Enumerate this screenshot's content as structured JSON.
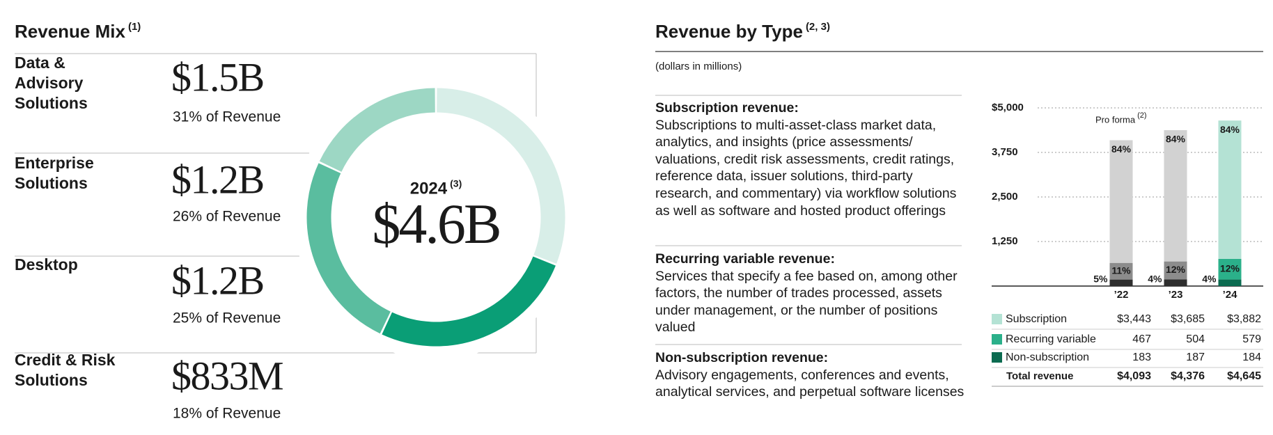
{
  "chart_data": [
    {
      "type": "pie",
      "donut": true,
      "title": "Revenue Mix",
      "title_note": "(1)",
      "center_title": "2024",
      "center_note": "(3)",
      "center_value": "$4.6B",
      "categories": [
        "Data & Advisory Solutions",
        "Enterprise Solutions",
        "Desktop",
        "Credit & Risk Solutions"
      ],
      "values": [
        31,
        26,
        25,
        18
      ],
      "value_labels": [
        "31% of Revenue",
        "26% of Revenue",
        "25% of Revenue",
        "18% of Revenue"
      ],
      "amounts": [
        "$1.5B",
        "$1.2B",
        "$1.2B",
        "$833M"
      ],
      "colors": [
        "#d8eee8",
        "#0a9e76",
        "#5abd9f",
        "#9dd7c4"
      ]
    },
    {
      "type": "bar",
      "stacked": true,
      "title": "Revenue by Type",
      "title_note": "(2, 3)",
      "subtitle": "(dollars in millions)",
      "annotation": "Pro forma",
      "annotation_note": "(2)",
      "categories": [
        "’22",
        "’23",
        "’24"
      ],
      "series": [
        {
          "name": "Subscription",
          "color": "#b4e2d4",
          "bar_colors": [
            "#d2d2d2",
            "#d2d2d2",
            "#b4e2d4"
          ],
          "values": [
            3443,
            3685,
            3882
          ],
          "value_labels": [
            "$3,443",
            "$3,685",
            "$3,882"
          ],
          "share_labels": [
            "84%",
            "84%",
            "84%"
          ]
        },
        {
          "name": "Recurring variable",
          "color": "#2bb08a",
          "bar_colors": [
            "#8c8c8c",
            "#8c8c8c",
            "#2bb08a"
          ],
          "values": [
            467,
            504,
            579
          ],
          "share_labels": [
            "11%",
            "12%",
            "12%"
          ]
        },
        {
          "name": "Non-subscription",
          "color": "#0b6b50",
          "bar_colors": [
            "#2e2e2e",
            "#2e2e2e",
            "#0b6b50"
          ],
          "values": [
            183,
            187,
            184
          ],
          "share_labels": [
            "5%",
            "4%",
            "4%"
          ]
        }
      ],
      "totals_name": "Total revenue",
      "totals": [
        4093,
        4376,
        4645
      ],
      "total_labels": [
        "$4,093",
        "$4,376",
        "$4,645"
      ],
      "ylim": [
        0,
        5000
      ],
      "yticks": [
        {
          "value": 1250,
          "label": "1,250"
        },
        {
          "value": 2500,
          "label": "2,500"
        },
        {
          "value": 3750,
          "label": "3,750"
        },
        {
          "value": 5000,
          "label": "$5,000"
        }
      ],
      "grid": true
    }
  ],
  "definitions": [
    {
      "heading": "Subscription revenue:",
      "text": "Subscriptions to multi-asset-class market data, analytics, and insights (price assessments/ valuations, credit risk assessments, credit ratings, reference data, issuer solutions, third-party research, and commentary) via workflow solutions as well as software and hosted product offerings"
    },
    {
      "heading": "Recurring variable revenue:",
      "text": "Services that specify a fee based on, among other factors, the number of trades processed, assets under management, or the number of positions valued"
    },
    {
      "heading": "Non-subscription revenue:",
      "text": "Advisory engagements, conferences and events, analytical services, and perpetual software licenses"
    }
  ]
}
